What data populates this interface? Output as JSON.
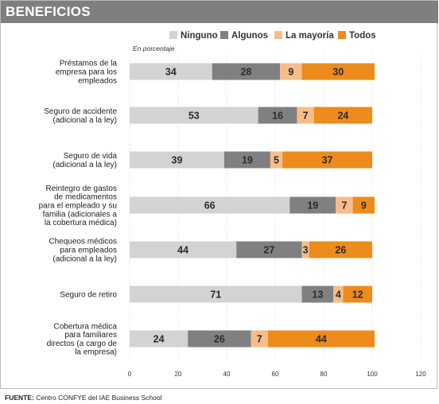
{
  "header": {
    "title": "BENEFICIOS"
  },
  "footer": {
    "source_label": "FUENTE:",
    "source_text": "Centro CONFYE del IAE Business School"
  },
  "chart_data": {
    "type": "bar",
    "orientation": "horizontal",
    "stacked": true,
    "unit_note": "En porcentaje",
    "xlim": [
      0,
      120
    ],
    "x_ticks": [
      0,
      20,
      40,
      60,
      80,
      100,
      120
    ],
    "legend_position": "top-right",
    "categories": [
      "Préstamos de la empresa para los empleados",
      "Seguro de accidente (adicional a la ley)",
      "Seguro de vida (adicional a la ley)",
      "Reintegro de gastos de medicamentos para el empleado y su familia (adicionales a la cobertura médica)",
      "Chequeos médicos para empleados (adicional a la ley)",
      "Seguro de retiro",
      "Cobertura médica para familiares directos (a cargo de la empresa)"
    ],
    "category_lines": [
      [
        "Préstamos de la",
        "empresa para los",
        "empleados"
      ],
      [
        "Seguro de accidente",
        "(adicional a la ley)"
      ],
      [
        "Seguro de vida",
        "(adicional a la ley)"
      ],
      [
        "Reintegro de gastos",
        "de medicamentos",
        "para el empleado y su",
        "familia (adicionales a",
        "la cobertura médica)"
      ],
      [
        "Chequeos médicos",
        "para empleados",
        "(adicional a la ley)"
      ],
      [
        "Seguro de retiro"
      ],
      [
        "Cobertura médica",
        "para familiares",
        "directos (a cargo de",
        "la empresa)"
      ]
    ],
    "series": [
      {
        "name": "Ninguno",
        "color": "#d3d3d3",
        "values": [
          34,
          53,
          39,
          66,
          44,
          71,
          24
        ]
      },
      {
        "name": "Algunos",
        "color": "#808080",
        "values": [
          28,
          16,
          19,
          19,
          27,
          13,
          26
        ]
      },
      {
        "name": "La mayoría",
        "color": "#f7bd88",
        "values": [
          9,
          7,
          5,
          7,
          3,
          4,
          7
        ]
      },
      {
        "name": "Todos",
        "color": "#ed8b1c",
        "values": [
          30,
          24,
          37,
          9,
          26,
          12,
          44
        ]
      }
    ]
  }
}
